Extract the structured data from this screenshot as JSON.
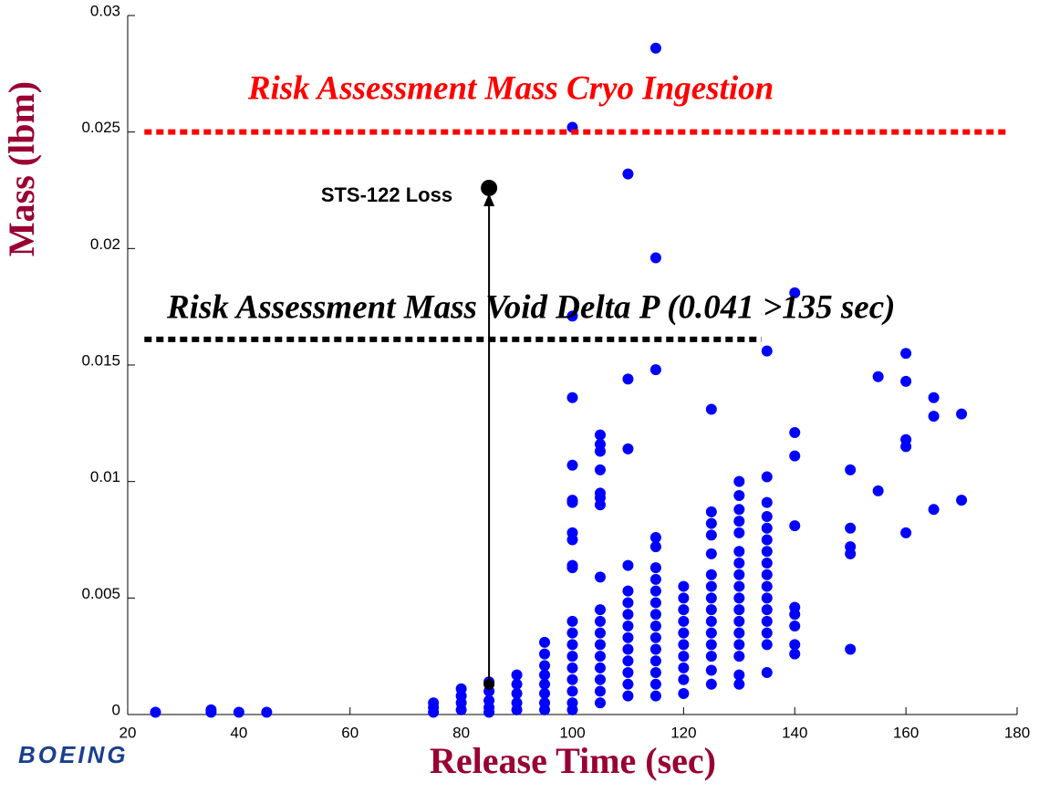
{
  "chart_data": {
    "type": "scatter",
    "x_label": "Release Time (sec)",
    "y_label": "Mass (lbm)",
    "xlim": [
      20,
      180
    ],
    "ylim": [
      0,
      0.03
    ],
    "xticks": [
      20,
      40,
      60,
      80,
      100,
      120,
      140,
      160,
      180
    ],
    "yticks": [
      0,
      0.005,
      0.01,
      0.015,
      0.02,
      0.025,
      0.03
    ],
    "grid": false,
    "series": [
      {
        "color": "#0000ff",
        "x": [
          25,
          35,
          35,
          40,
          45,
          75,
          75,
          75,
          80,
          80,
          80,
          80,
          85,
          85,
          85,
          85,
          85,
          90,
          90,
          90,
          90,
          90,
          95,
          95,
          95,
          95,
          95,
          95,
          95,
          95,
          100,
          100,
          100,
          100,
          100,
          100,
          100,
          100,
          100,
          100,
          100,
          100,
          100,
          100,
          100,
          100,
          100,
          100,
          100,
          105,
          105,
          105,
          105,
          105,
          105,
          105,
          105,
          105,
          105,
          105,
          105,
          105,
          105,
          105,
          105,
          105,
          110,
          110,
          110,
          110,
          110,
          110,
          110,
          110,
          110,
          110,
          110,
          110,
          110,
          110,
          115,
          115,
          115,
          115,
          115,
          115,
          115,
          115,
          115,
          115,
          115,
          115,
          115,
          115,
          115,
          115,
          115,
          120,
          120,
          120,
          120,
          120,
          120,
          120,
          120,
          120,
          120,
          125,
          125,
          125,
          125,
          125,
          125,
          125,
          125,
          125,
          125,
          125,
          125,
          125,
          125,
          125,
          130,
          130,
          130,
          130,
          130,
          130,
          130,
          130,
          130,
          130,
          130,
          130,
          130,
          130,
          130,
          130,
          130,
          135,
          135,
          135,
          135,
          135,
          135,
          135,
          135,
          135,
          135,
          135,
          135,
          135,
          135,
          135,
          135,
          140,
          140,
          140,
          140,
          140,
          140,
          140,
          140,
          140,
          150,
          150,
          150,
          150,
          150,
          155,
          155,
          160,
          160,
          160,
          160,
          160,
          165,
          165,
          165,
          170,
          170
        ],
        "values": [
          0.0001,
          0.0002,
          0.0001,
          0.0001,
          0.0001,
          0.0005,
          0.0003,
          0.0001,
          0.0011,
          0.0008,
          0.0005,
          0.0002,
          0.0014,
          0.001,
          0.0006,
          0.0003,
          0.0001,
          0.0017,
          0.0013,
          0.0009,
          0.0005,
          0.0002,
          0.0031,
          0.0026,
          0.0021,
          0.0017,
          0.0013,
          0.0009,
          0.0005,
          0.0002,
          0.0252,
          0.0171,
          0.0136,
          0.0107,
          0.0092,
          0.0091,
          0.0078,
          0.0075,
          0.0064,
          0.0063,
          0.004,
          0.0035,
          0.003,
          0.0025,
          0.002,
          0.0015,
          0.001,
          0.0005,
          0.0002,
          0.012,
          0.0116,
          0.0113,
          0.0105,
          0.0095,
          0.0093,
          0.009,
          0.0059,
          0.0045,
          0.004,
          0.0035,
          0.003,
          0.0025,
          0.002,
          0.0015,
          0.001,
          0.0005,
          0.0232,
          0.0144,
          0.0114,
          0.0064,
          0.0053,
          0.0048,
          0.0043,
          0.0038,
          0.0033,
          0.0028,
          0.0023,
          0.0018,
          0.0013,
          0.0008,
          0.0286,
          0.0196,
          0.0148,
          0.0076,
          0.0072,
          0.0063,
          0.0058,
          0.0053,
          0.0048,
          0.0043,
          0.0038,
          0.0033,
          0.0028,
          0.0023,
          0.0018,
          0.0013,
          0.0008,
          0.0055,
          0.005,
          0.0045,
          0.004,
          0.0035,
          0.003,
          0.0025,
          0.002,
          0.0015,
          0.0009,
          0.0131,
          0.0087,
          0.0082,
          0.0077,
          0.0069,
          0.006,
          0.0055,
          0.005,
          0.0045,
          0.004,
          0.0035,
          0.003,
          0.0025,
          0.0019,
          0.0013,
          0.01,
          0.0094,
          0.0088,
          0.0083,
          0.0078,
          0.007,
          0.0065,
          0.006,
          0.0055,
          0.005,
          0.0045,
          0.004,
          0.0035,
          0.003,
          0.0025,
          0.0017,
          0.0013,
          0.0156,
          0.0102,
          0.0091,
          0.0085,
          0.008,
          0.0075,
          0.007,
          0.0065,
          0.006,
          0.0055,
          0.005,
          0.0045,
          0.004,
          0.0035,
          0.003,
          0.0018,
          0.0181,
          0.0121,
          0.0111,
          0.0081,
          0.0046,
          0.0043,
          0.0038,
          0.003,
          0.0026,
          0.0105,
          0.008,
          0.0072,
          0.0069,
          0.0028,
          0.0145,
          0.0096,
          0.0155,
          0.0143,
          0.0118,
          0.0115,
          0.0078,
          0.0136,
          0.0128,
          0.0088,
          0.0129,
          0.0092
        ]
      }
    ],
    "reference_lines": [
      {
        "label": "Risk Assessment Mass Cryo Ingestion",
        "y": 0.025,
        "x_range": [
          23,
          178
        ],
        "color": "#ff0000"
      },
      {
        "label": "Risk Assessment Mass Void Delta P (0.041 >135 sec)",
        "y": 0.0161,
        "x_range": [
          23,
          134
        ],
        "color": "#000000"
      }
    ],
    "annotation": {
      "text": "STS-122 Loss",
      "x": 85,
      "y": 0.0226,
      "arrow_start": [
        85,
        0.0013
      ],
      "color": "#000000"
    },
    "logo": "BOEING"
  }
}
